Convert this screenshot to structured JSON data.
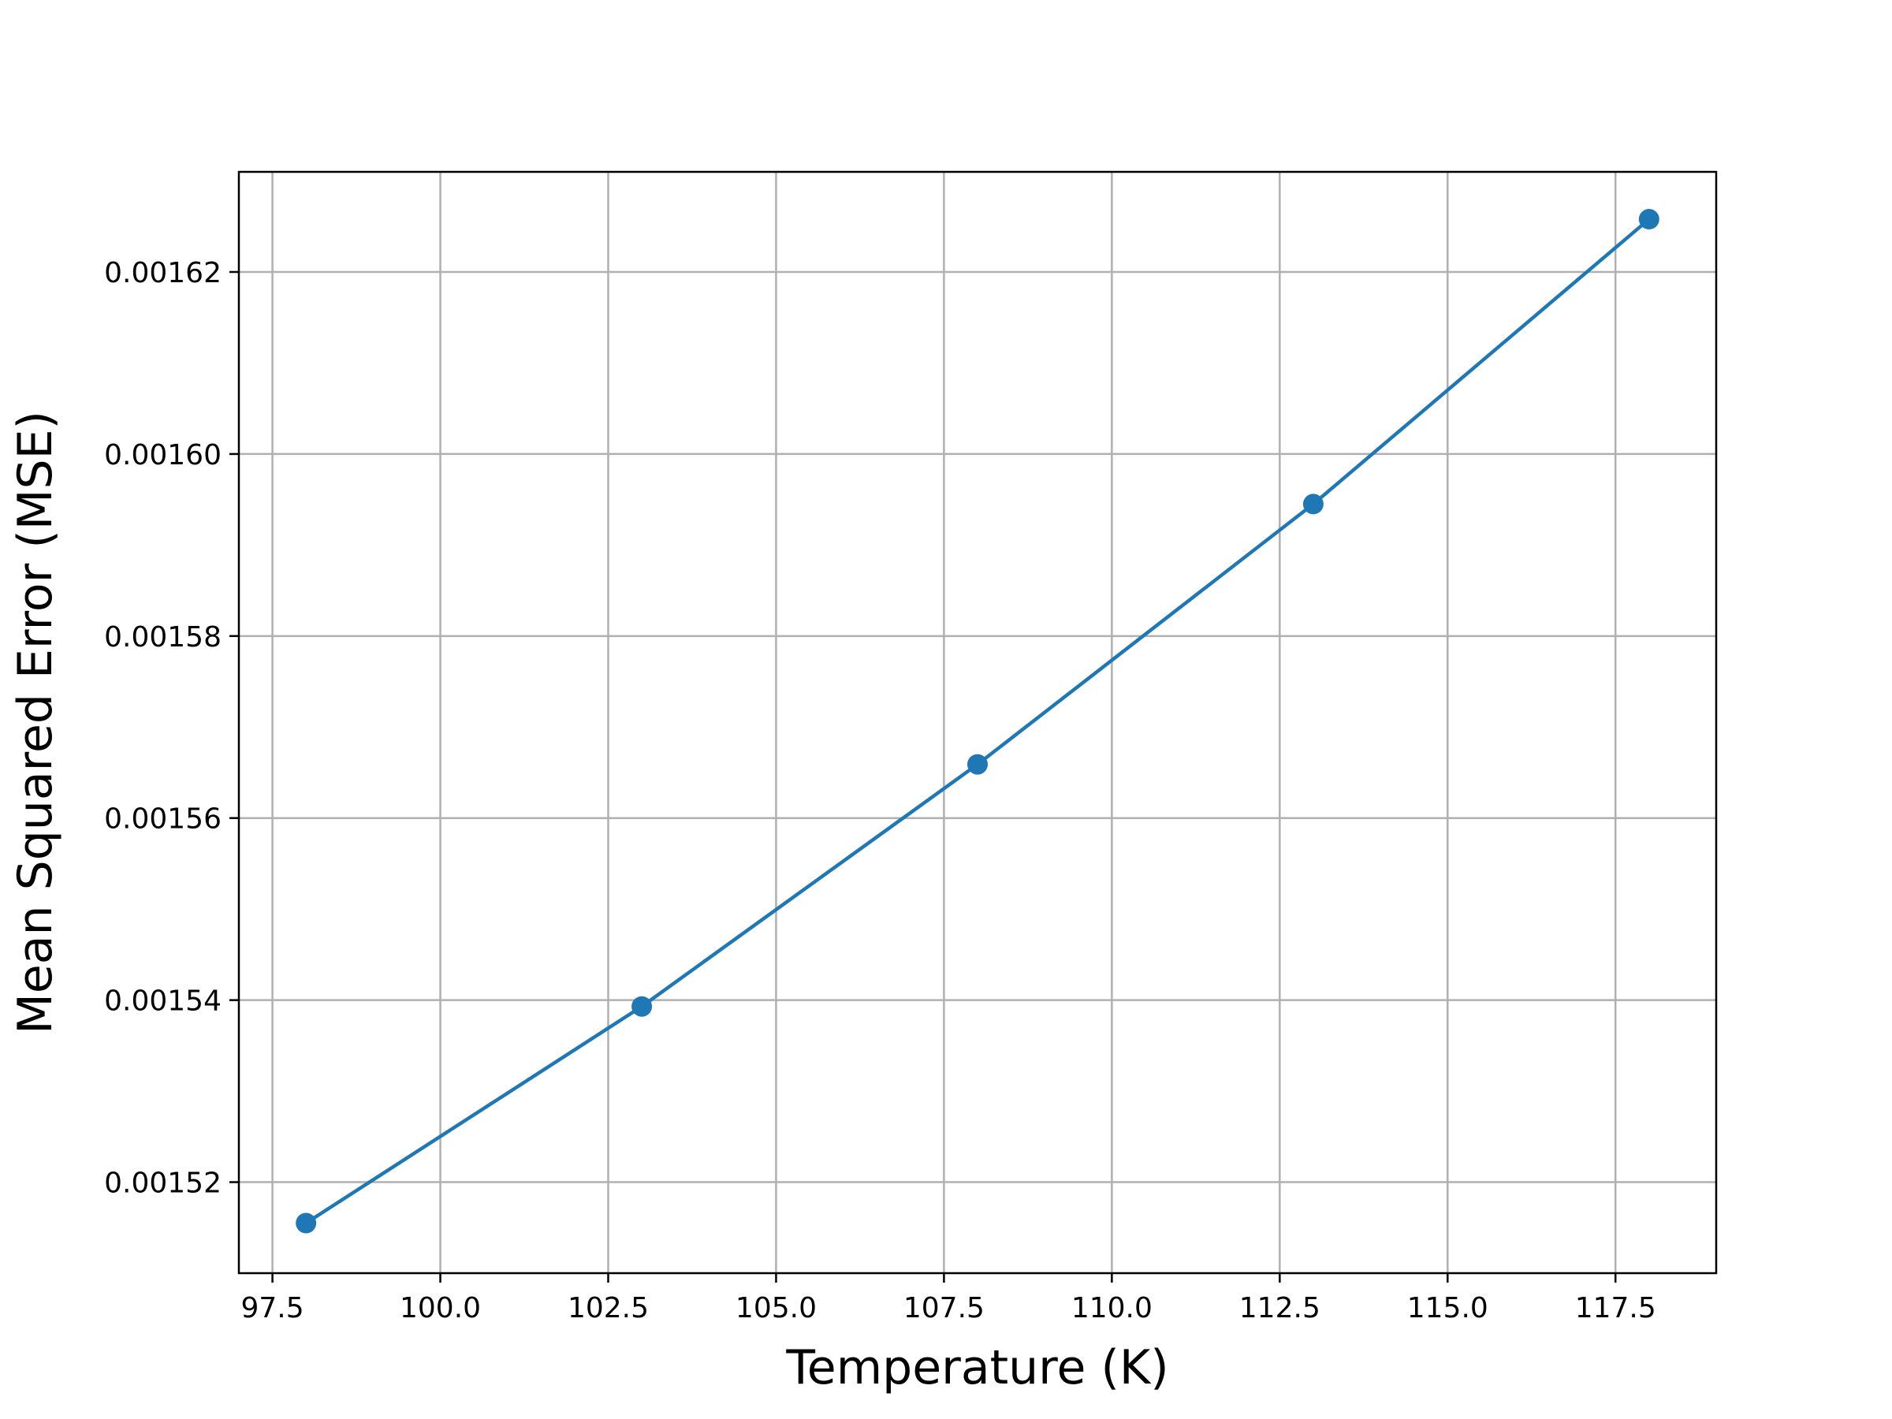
{
  "chart_data": {
    "type": "line",
    "title": "",
    "xlabel": "Temperature (K)",
    "ylabel": "Mean Squared Error (MSE)",
    "xlim": [
      97,
      119
    ],
    "ylim": [
      0.00151,
      0.001631
    ],
    "grid": true,
    "x_ticks": [
      97.5,
      100.0,
      102.5,
      105.0,
      107.5,
      110.0,
      112.5,
      115.0,
      117.5
    ],
    "x_tick_labels": [
      "97.5",
      "100.0",
      "102.5",
      "105.0",
      "107.5",
      "110.0",
      "112.5",
      "115.0",
      "117.5"
    ],
    "y_ticks": [
      0.00152,
      0.00154,
      0.00156,
      0.00158,
      0.0016,
      0.00162
    ],
    "y_tick_labels": [
      "0.00152",
      "0.00154",
      "0.00156",
      "0.00158",
      "0.00160",
      "0.00162"
    ],
    "series": [
      {
        "color": "#1f77b4",
        "marker": "circle",
        "x": [
          98,
          103,
          108,
          113,
          118
        ],
        "y": [
          0.0015155,
          0.0015393,
          0.0015659,
          0.0015945,
          0.0016258
        ]
      }
    ]
  }
}
